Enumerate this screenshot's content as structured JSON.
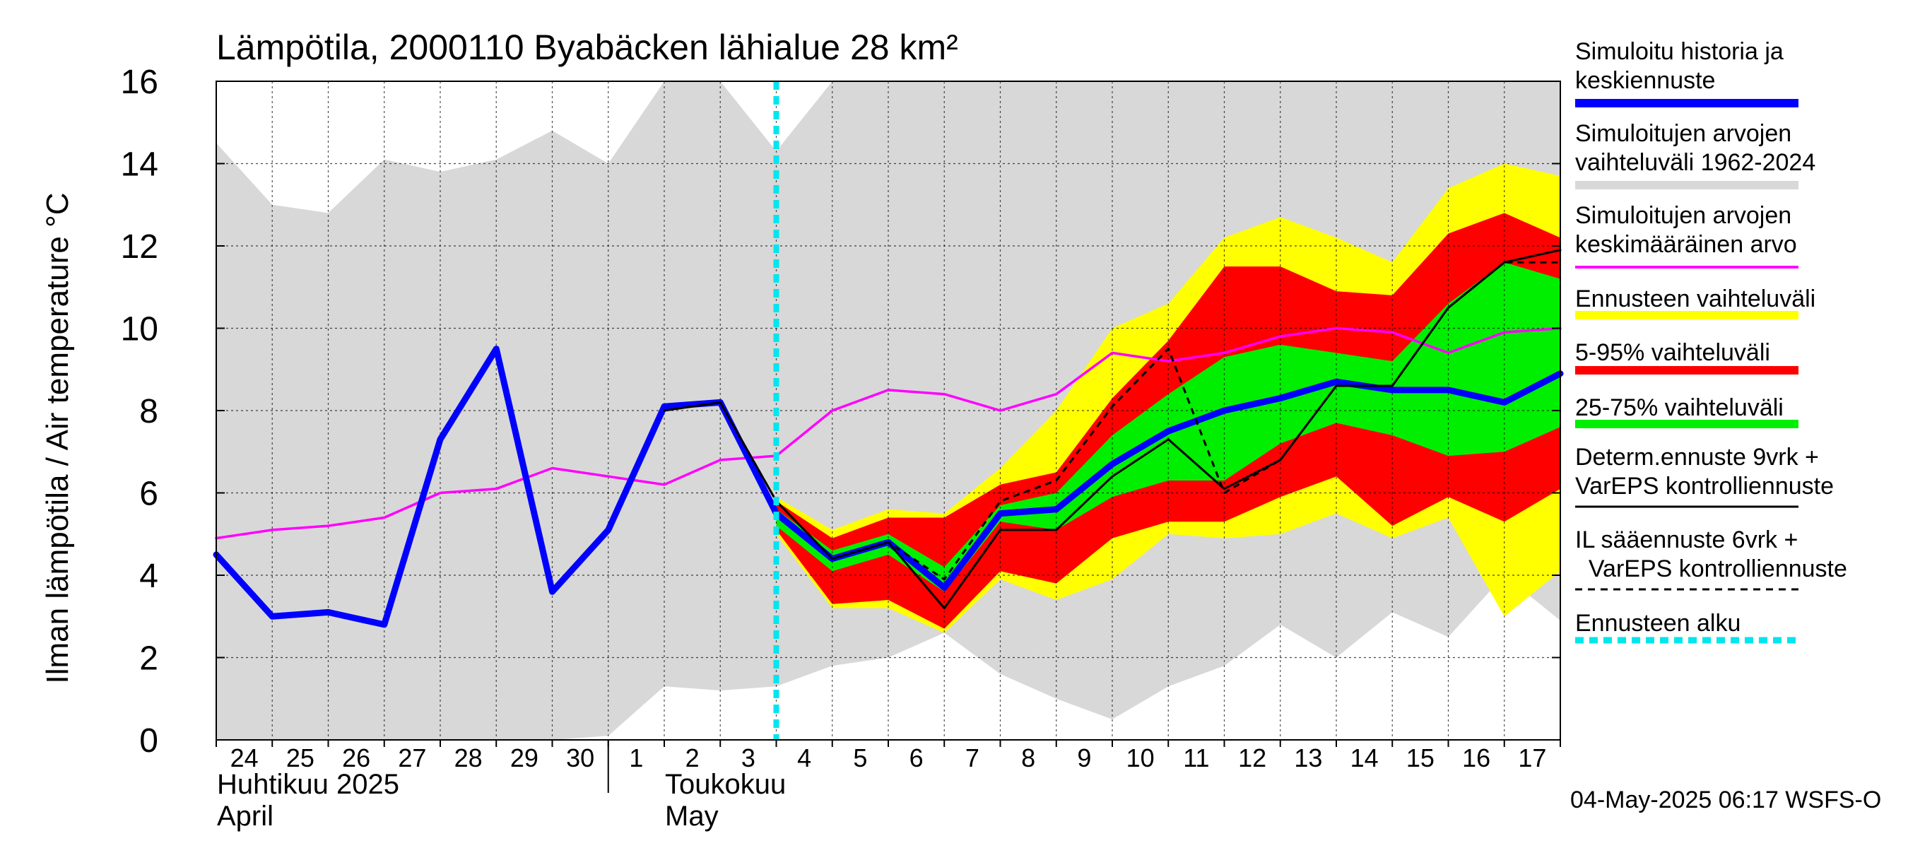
{
  "chart_data": {
    "type": "area",
    "title": "Lämpötila, 2000110 Byabäcken  lähialue 28 km²",
    "ylabel": "Ilman lämpötila / Air temperature    °C",
    "ylim": [
      0,
      16
    ],
    "yticks": [
      0,
      2,
      4,
      6,
      8,
      10,
      12,
      14,
      16
    ],
    "grid": true,
    "x_tick_labels": [
      "24",
      "25",
      "26",
      "27",
      "28",
      "29",
      "30",
      "1",
      "2",
      "3",
      "4",
      "5",
      "6",
      "7",
      "8",
      "9",
      "10",
      "11",
      "12",
      "13",
      "14",
      "15",
      "16",
      "17"
    ],
    "month_labels": {
      "april_fi": "Huhtikuu  2025",
      "april_en": "April",
      "may_fi": "Toukokuu",
      "may_en": "May"
    },
    "forecast_start_day": 10,
    "series": [
      {
        "name": "Simuloitujen arvojen vaihteluväli 1962-2024",
        "type": "band",
        "color": "#d8d8d8",
        "days": [
          0,
          1,
          2,
          3,
          4,
          5,
          6,
          7,
          8,
          9,
          10,
          11,
          12,
          13,
          14,
          15,
          16,
          17,
          18,
          19,
          20,
          21,
          22,
          23,
          24
        ],
        "lower": [
          0,
          0,
          0,
          0,
          0,
          0,
          0,
          0.1,
          1.3,
          1.2,
          1.3,
          1.8,
          2.0,
          2.6,
          1.6,
          1.0,
          0.5,
          1.3,
          1.8,
          2.8,
          2.0,
          3.1,
          2.5,
          4.0,
          2.9
        ],
        "upper": [
          14.5,
          13.0,
          12.8,
          14.1,
          13.8,
          14.1,
          14.8,
          14.0,
          16.0,
          16.0,
          14.3,
          16.0,
          16.0,
          16.0,
          16.0,
          16.0,
          16.0,
          16.0,
          16.0,
          16.0,
          16.0,
          16.0,
          16.0,
          16.0,
          16.0
        ]
      },
      {
        "name": "Ennusteen vaihteluväli",
        "type": "band",
        "color": "#ffff00",
        "days": [
          10,
          11,
          12,
          13,
          14,
          15,
          16,
          17,
          18,
          19,
          20,
          21,
          22,
          23,
          24
        ],
        "lower": [
          5.0,
          3.2,
          3.2,
          2.6,
          3.9,
          3.4,
          3.9,
          5.0,
          4.9,
          5.0,
          5.5,
          4.9,
          5.4,
          3.0,
          4.1
        ],
        "upper": [
          5.9,
          5.1,
          5.6,
          5.5,
          6.6,
          8.0,
          10.0,
          10.6,
          12.2,
          12.7,
          12.2,
          11.6,
          13.4,
          14.0,
          13.7
        ]
      },
      {
        "name": "5-95% vaihteluväli",
        "type": "band",
        "color": "#ff0000",
        "days": [
          10,
          11,
          12,
          13,
          14,
          15,
          16,
          17,
          18,
          19,
          20,
          21,
          22,
          23,
          24
        ],
        "lower": [
          5.1,
          3.3,
          3.4,
          2.7,
          4.1,
          3.8,
          4.9,
          5.3,
          5.3,
          5.9,
          6.4,
          5.2,
          5.9,
          5.3,
          6.1
        ],
        "upper": [
          5.8,
          4.9,
          5.4,
          5.4,
          6.2,
          6.5,
          8.3,
          9.7,
          11.5,
          11.5,
          10.9,
          10.8,
          12.3,
          12.8,
          12.2
        ]
      },
      {
        "name": "25-75% vaihteluväli",
        "type": "band",
        "color": "#00ee00",
        "days": [
          10,
          11,
          12,
          13,
          14,
          15,
          16,
          17,
          18,
          19,
          20,
          21,
          22,
          23,
          24
        ],
        "lower": [
          5.2,
          4.1,
          4.5,
          3.6,
          5.3,
          5.1,
          5.9,
          6.3,
          6.3,
          7.2,
          7.7,
          7.4,
          6.9,
          7.0,
          7.6
        ],
        "upper": [
          5.6,
          4.6,
          5.0,
          4.2,
          5.7,
          6.0,
          7.4,
          8.4,
          9.3,
          9.6,
          9.4,
          9.2,
          10.6,
          11.6,
          11.2
        ]
      },
      {
        "name": "Simuloitujen arvojen keskimääräinen arvo",
        "type": "line",
        "color": "#ff00ff",
        "days": [
          0,
          1,
          2,
          3,
          4,
          5,
          6,
          7,
          8,
          9,
          10,
          11,
          12,
          13,
          14,
          15,
          16,
          17,
          18,
          19,
          20,
          21,
          22,
          23,
          24
        ],
        "values": [
          4.9,
          5.1,
          5.2,
          5.4,
          6.0,
          6.1,
          6.6,
          6.4,
          6.2,
          6.8,
          6.9,
          8.0,
          8.5,
          8.4,
          8.0,
          8.4,
          9.4,
          9.2,
          9.4,
          9.8,
          10.0,
          9.9,
          9.4,
          9.9,
          10.0
        ]
      },
      {
        "name": "Simuloitu historia ja keskiennuste",
        "type": "line",
        "color": "#0000ff",
        "days": [
          0,
          1,
          2,
          3,
          4,
          5,
          6,
          7,
          8,
          9,
          10,
          11,
          12,
          13,
          14,
          15,
          16,
          17,
          18,
          19,
          20,
          21,
          22,
          23,
          24
        ],
        "values": [
          4.5,
          3.0,
          3.1,
          2.8,
          7.3,
          9.5,
          3.6,
          5.1,
          8.1,
          8.2,
          5.5,
          4.4,
          4.8,
          3.7,
          5.5,
          5.6,
          6.7,
          7.5,
          8.0,
          8.3,
          8.7,
          8.5,
          8.5,
          8.2,
          8.9
        ]
      },
      {
        "name": "Determ.ennuste 9vrk + VarEPS kontrolliennuste",
        "type": "line",
        "color": "#000000",
        "days": [
          8,
          9,
          10,
          11,
          12,
          13,
          14,
          15,
          16,
          17,
          18,
          19,
          20,
          21,
          22,
          23,
          24
        ],
        "values": [
          8.0,
          8.2,
          5.8,
          4.4,
          4.8,
          3.2,
          5.1,
          5.1,
          6.4,
          7.3,
          6.1,
          6.8,
          8.6,
          8.6,
          10.5,
          11.6,
          11.9
        ]
      },
      {
        "name": "IL sääennuste 6vrk + VarEPS kontrolliennuste",
        "type": "line",
        "color": "#000000",
        "dashed": true,
        "days": [
          8,
          9,
          10,
          11,
          12,
          13,
          14,
          15,
          16,
          17,
          18,
          19,
          20,
          21,
          22,
          23,
          24
        ],
        "values": [
          8.0,
          8.2,
          5.8,
          4.4,
          4.8,
          3.9,
          5.8,
          6.3,
          8.1,
          9.5,
          6.0,
          6.8,
          8.6,
          8.6,
          10.5,
          11.6,
          11.6
        ]
      }
    ],
    "legend": {
      "position": "right",
      "entries": [
        {
          "text1": "Simuloitu historia ja",
          "text2": "keskiennuste",
          "color": "#0000ff",
          "style": "thick"
        },
        {
          "text1": "Simuloitujen arvojen",
          "text2": "vaihteluväli 1962-2024",
          "color": "#d8d8d8",
          "style": "thick"
        },
        {
          "text1": "Simuloitujen arvojen",
          "text2": "keskimääräinen arvo",
          "color": "#ff00ff",
          "style": "thin"
        },
        {
          "text1": "Ennusteen vaihteluväli",
          "text2": "",
          "color": "#ffff00",
          "style": "thick"
        },
        {
          "text1": "5-95% vaihteluväli",
          "text2": "",
          "color": "#ff0000",
          "style": "thick"
        },
        {
          "text1": "25-75% vaihteluväli",
          "text2": "",
          "color": "#00ee00",
          "style": "thick"
        },
        {
          "text1": "Determ.ennuste 9vrk +",
          "text2": "VarEPS kontrolliennuste",
          "color": "#000000",
          "style": "line"
        },
        {
          "text1": "IL sääennuste 6vrk  +",
          "text2": "  VarEPS kontrolliennuste",
          "color": "#000000",
          "style": "dash"
        },
        {
          "text1": "Ennusteen alku",
          "text2": "",
          "color": "#00e5ee",
          "style": "dotted"
        }
      ]
    },
    "footer": "04-May-2025 06:17 WSFS-O"
  }
}
